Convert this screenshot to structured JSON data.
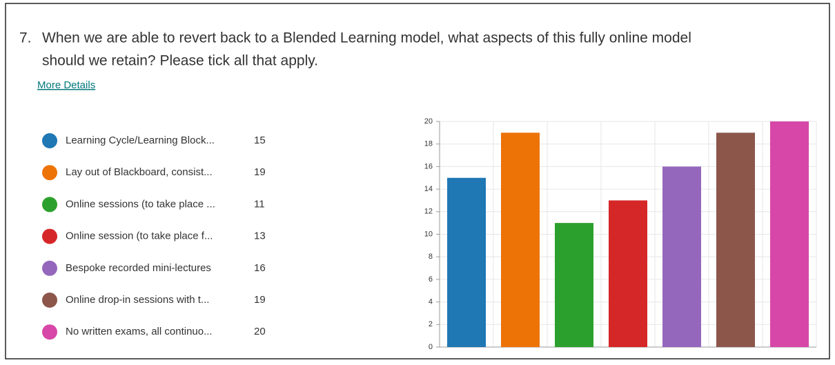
{
  "question": {
    "number": "7.",
    "text_line1": "When we are able to revert back to a Blended Learning model, what aspects of this fully online model",
    "text_line2": "should we retain? Please tick all that apply.",
    "link": "More Details"
  },
  "chart_data": {
    "type": "bar",
    "categories": [
      "Learning Cycle/Learning Block...",
      "Lay out of Blackboard, consist...",
      "Online sessions (to take place ...",
      "Online session (to take place f...",
      "Bespoke recorded mini-lectures",
      "Online drop-in sessions with t...",
      "No written exams, all continuo..."
    ],
    "values": [
      15,
      19,
      11,
      13,
      16,
      19,
      20
    ],
    "colors": [
      "#1f77b4",
      "#ed7307",
      "#2ca02c",
      "#d62728",
      "#9467bd",
      "#8c564b",
      "#d647a8"
    ],
    "ylim": [
      0,
      20
    ],
    "yticks": [
      0,
      2,
      4,
      6,
      8,
      10,
      12,
      14,
      16,
      18,
      20
    ],
    "grid": true
  }
}
